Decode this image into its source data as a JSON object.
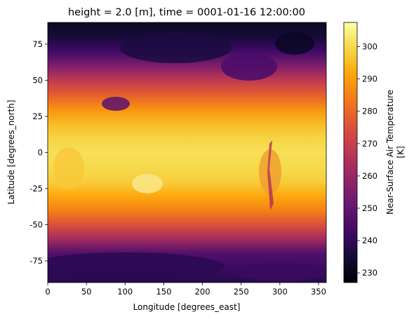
{
  "chart_data": {
    "type": "heatmap",
    "title": "height = 2.0 [m], time = 0001-01-16 12:00:00",
    "xlabel": "Longitude [degrees_east]",
    "ylabel": "Latitude [degrees_north]",
    "xlim": [
      0,
      360
    ],
    "ylim": [
      -90,
      90
    ],
    "xticks": [
      0,
      50,
      100,
      150,
      200,
      250,
      300,
      350
    ],
    "yticks": [
      -75,
      -50,
      -25,
      0,
      25,
      50,
      75
    ],
    "colorbar": {
      "label_line1": "Near-Surface Air Temperature",
      "label_line2": "[K]",
      "colormap": "inferno",
      "vmin": 227,
      "vmax": 307.5,
      "ticks": [
        230,
        240,
        250,
        260,
        270,
        280,
        290,
        300
      ]
    },
    "zonal_profile": {
      "lat": [
        -90,
        -80,
        -70,
        -60,
        -50,
        -40,
        -30,
        -20,
        -10,
        0,
        10,
        20,
        30,
        40,
        50,
        60,
        70,
        80,
        90
      ],
      "temperature": [
        238,
        242,
        246,
        262,
        275,
        285,
        292,
        298,
        300,
        301,
        299,
        295,
        288,
        278,
        268,
        255,
        243,
        235,
        232
      ]
    }
  }
}
